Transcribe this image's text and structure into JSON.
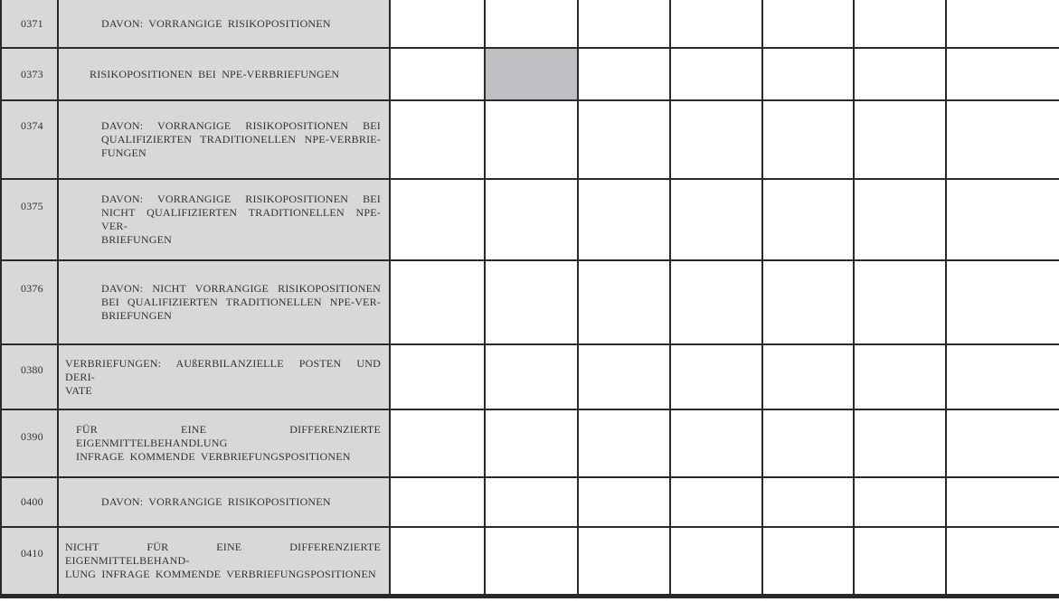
{
  "document": {
    "language": "de",
    "description": "Regulatory reporting table fragment (securitisation risk positions), rows 0371-0410"
  },
  "colors": {
    "label_background": "#d8d8d8",
    "highlight_cell_background": "#bdbfc2",
    "grid_line": "#2b2826",
    "text": "#35302e",
    "page_background": "#ffffff"
  },
  "table": {
    "data_column_count": 7,
    "rows": [
      {
        "code": "0371",
        "indent_level": 3,
        "label": "DAVON: VORRANGIGE RISIKOPOSITIONEN",
        "label_lines": [
          "DAVON: VORRANGIGE RISIKOPOSITIONEN"
        ],
        "cells": [
          "",
          "",
          "",
          "",
          "",
          "",
          ""
        ],
        "highlight_columns": []
      },
      {
        "code": "0373",
        "indent_level": 2,
        "label": "RISIKOPOSITIONEN BEI NPE-VERBRIEFUNGEN",
        "label_lines": [
          "RISIKOPOSITIONEN BEI NPE-VERBRIEFUNGEN"
        ],
        "cells": [
          "",
          "",
          "",
          "",
          "",
          "",
          ""
        ],
        "highlight_columns": [
          1
        ]
      },
      {
        "code": "0374",
        "indent_level": 3,
        "label": "DAVON: VORRANGIGE RISIKOPOSITIONEN BEI QUALIFIZIERTEN TRADITIONELLEN NPE-VERBRIEFUNGEN",
        "label_lines": [
          "DAVON: VORRANGIGE RISIKOPOSITIONEN BEI",
          "QUALIFIZIERTEN TRADITIONELLEN NPE-VERBRIE-",
          "FUNGEN"
        ],
        "cells": [
          "",
          "",
          "",
          "",
          "",
          "",
          ""
        ],
        "highlight_columns": []
      },
      {
        "code": "0375",
        "indent_level": 3,
        "label": "DAVON: VORRANGIGE RISIKOPOSITIONEN BEI NICHT QUALIFIZIERTEN TRADITIONELLEN NPE-VERBRIEFUNGEN",
        "label_lines": [
          "DAVON: VORRANGIGE RISIKOPOSITIONEN BEI",
          "NICHT QUALIFIZIERTEN TRADITIONELLEN NPE-VER-",
          "BRIEFUNGEN"
        ],
        "cells": [
          "",
          "",
          "",
          "",
          "",
          "",
          ""
        ],
        "highlight_columns": []
      },
      {
        "code": "0376",
        "indent_level": 3,
        "label": "DAVON: NICHT VORRANGIGE RISIKOPOSITIONEN BEI QUALIFIZIERTEN TRADITIONELLEN NPE-VERBRIEFUNGEN",
        "label_lines": [
          "DAVON: NICHT VORRANGIGE RISIKOPOSITIONEN",
          "BEI QUALIFIZIERTEN TRADITIONELLEN NPE-VER-",
          "BRIEFUNGEN"
        ],
        "cells": [
          "",
          "",
          "",
          "",
          "",
          "",
          ""
        ],
        "highlight_columns": []
      },
      {
        "code": "0380",
        "indent_level": 0,
        "label": "VERBRIEFUNGEN: AUßERBILANZIELLE POSTEN UND DERIVATE",
        "label_lines": [
          "VERBRIEFUNGEN: AUßERBILANZIELLE POSTEN UND DERI-",
          "VATE"
        ],
        "cells": [
          "",
          "",
          "",
          "",
          "",
          "",
          ""
        ],
        "highlight_columns": []
      },
      {
        "code": "0390",
        "indent_level": 1,
        "label": "FÜR EINE DIFFERENZIERTE EIGENMITTELBEHANDLUNG INFRAGE KOMMENDE VERBRIEFUNGSPOSITIONEN",
        "label_lines": [
          "FÜR EINE DIFFERENZIERTE EIGENMITTELBEHANDLUNG",
          "INFRAGE KOMMENDE VERBRIEFUNGSPOSITIONEN"
        ],
        "cells": [
          "",
          "",
          "",
          "",
          "",
          "",
          ""
        ],
        "highlight_columns": []
      },
      {
        "code": "0400",
        "indent_level": 3,
        "label": "DAVON: VORRANGIGE RISIKOPOSITIONEN",
        "label_lines": [
          "DAVON: VORRANGIGE RISIKOPOSITIONEN"
        ],
        "cells": [
          "",
          "",
          "",
          "",
          "",
          "",
          ""
        ],
        "highlight_columns": []
      },
      {
        "code": "0410",
        "indent_level": 0,
        "label": "NICHT FÜR EINE DIFFERENZIERTE EIGENMITTELBEHANDLUNG INFRAGE KOMMENDE VERBRIEFUNGSPOSITIONEN",
        "label_lines": [
          "NICHT FÜR EINE DIFFERENZIERTE EIGENMITTELBEHAND-",
          "LUNG INFRAGE KOMMENDE VERBRIEFUNGSPOSITIONEN"
        ],
        "cells": [
          "",
          "",
          "",
          "",
          "",
          "",
          ""
        ],
        "highlight_columns": []
      }
    ]
  }
}
